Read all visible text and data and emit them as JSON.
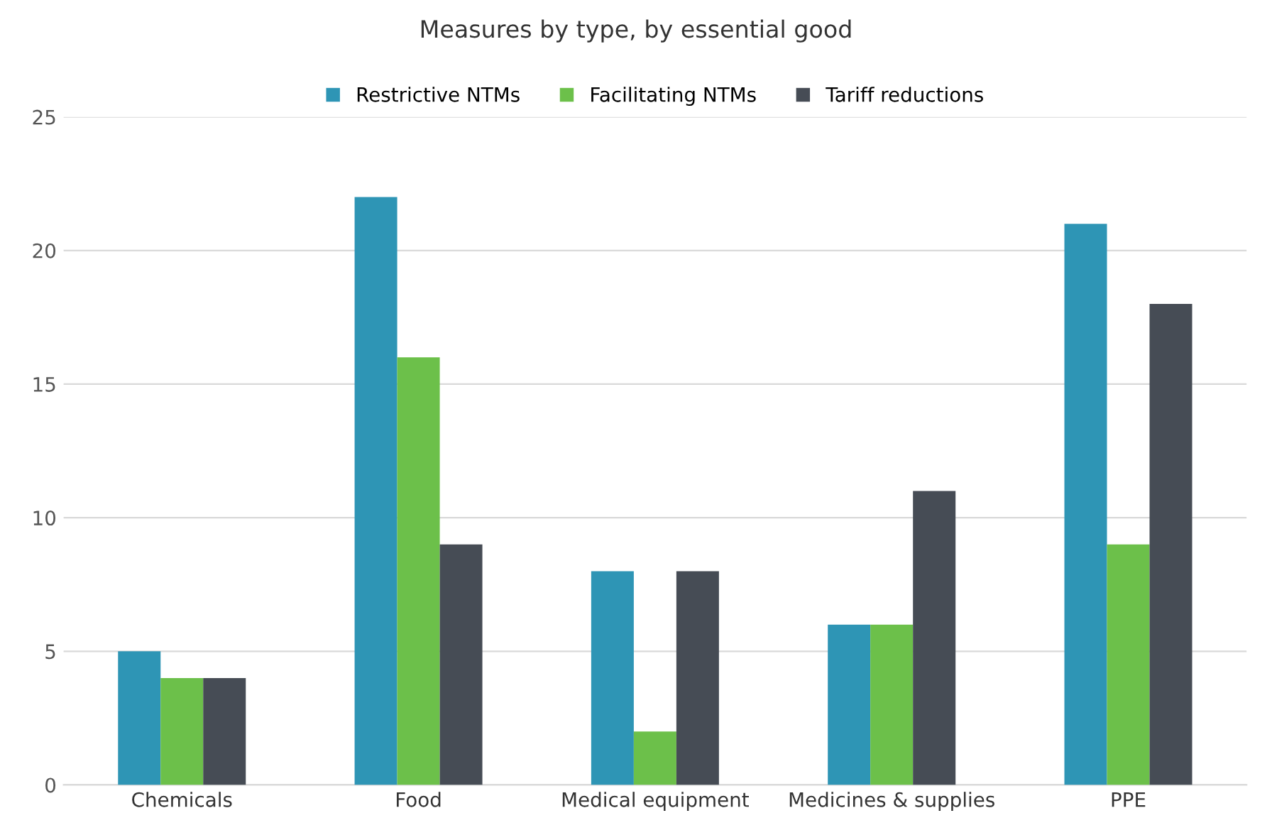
{
  "chart_data": {
    "type": "bar",
    "title": "Measures by type, by essential good",
    "categories": [
      "Chemicals",
      "Food",
      "Medical equipment",
      "Medicines & supplies",
      "PPE"
    ],
    "series": [
      {
        "name": "Restrictive NTMs",
        "color": "#2e95b5",
        "values": [
          5,
          22,
          8,
          6,
          21
        ]
      },
      {
        "name": "Facilitating NTMs",
        "color": "#6cc04a",
        "values": [
          4,
          16,
          2,
          6,
          9
        ]
      },
      {
        "name": "Tariff reductions",
        "color": "#464c55",
        "values": [
          4,
          9,
          8,
          11,
          18
        ]
      }
    ],
    "ylim": [
      0,
      25
    ],
    "yticks": [
      0,
      5,
      10,
      15,
      20,
      25
    ],
    "grid": "y",
    "legend": "top"
  }
}
